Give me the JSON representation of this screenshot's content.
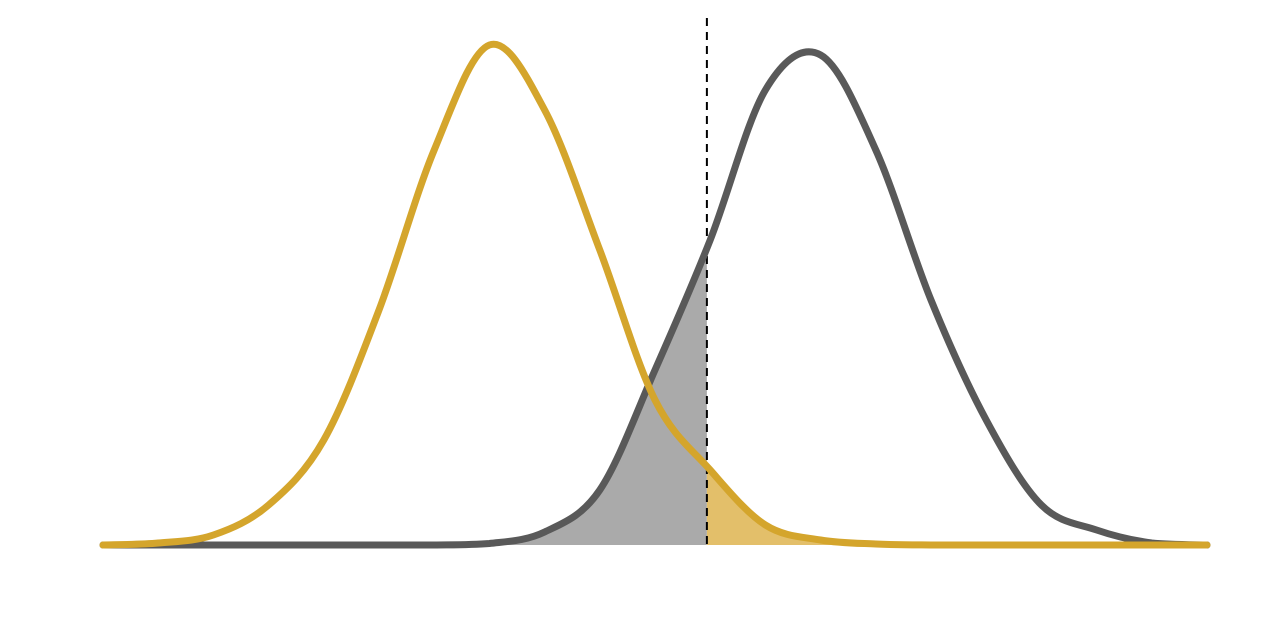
{
  "chart_data": {
    "type": "line",
    "x": [
      0,
      5,
      10,
      15,
      20,
      25,
      30,
      35,
      40,
      45,
      50,
      55,
      60,
      65,
      70,
      75,
      80,
      85,
      90,
      95,
      100
    ],
    "series": [
      {
        "color": "#595959",
        "fill_color": "#aaaaaa",
        "shade": "below_threshold",
        "values": [
          0,
          0,
          0,
          0,
          0,
          0,
          0,
          0.3,
          2.6,
          11,
          35,
          61,
          91,
          98,
          79,
          49,
          25,
          8,
          3,
          0.4,
          0
        ]
      },
      {
        "color": "#d4a52c",
        "fill_color": "#e3bf6a",
        "shade": "above_threshold",
        "values": [
          0,
          0.4,
          2,
          8,
          21,
          47,
          79,
          100,
          87,
          59,
          29,
          15,
          4,
          1,
          0.2,
          0,
          0,
          0,
          0,
          0,
          0
        ]
      }
    ],
    "threshold": 54.7,
    "xlim": [
      0,
      100
    ],
    "ylim": [
      0,
      100
    ]
  }
}
